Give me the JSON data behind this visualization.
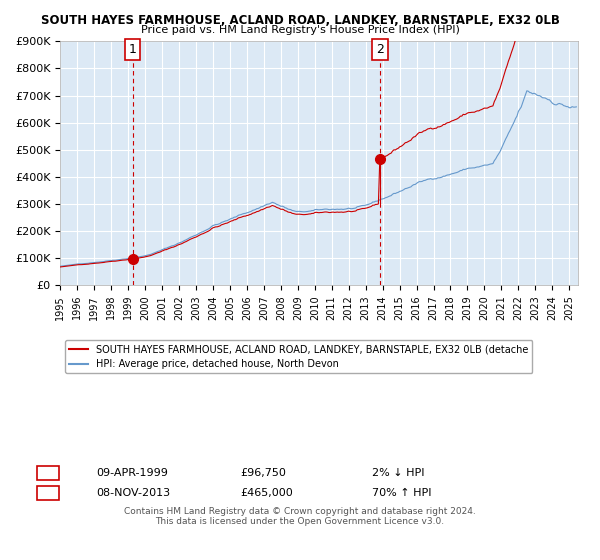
{
  "title1": "SOUTH HAYES FARMHOUSE, ACLAND ROAD, LANDKEY, BARNSTAPLE, EX32 0LB",
  "title2": "Price paid vs. HM Land Registry's House Price Index (HPI)",
  "ylabel": "",
  "background_color": "#dce9f5",
  "plot_bg": "#dce9f5",
  "legend_line1": "SOUTH HAYES FARMHOUSE, ACLAND ROAD, LANDKEY, BARNSTAPLE, EX32 0LB (detache",
  "legend_line2": "HPI: Average price, detached house, North Devon",
  "annotation1_label": "1",
  "annotation1_date": "09-APR-1999",
  "annotation1_price": "£96,750",
  "annotation1_hpi": "2% ↓ HPI",
  "annotation2_label": "2",
  "annotation2_date": "08-NOV-2013",
  "annotation2_price": "£465,000",
  "annotation2_hpi": "70% ↑ HPI",
  "footer": "Contains HM Land Registry data © Crown copyright and database right 2024.\nThis data is licensed under the Open Government Licence v3.0.",
  "red_line_color": "#cc0000",
  "blue_line_color": "#6699cc",
  "vline_color": "#cc0000",
  "marker_color": "#cc0000",
  "purchase1_year": 1999.27,
  "purchase1_price": 96750,
  "purchase2_year": 2013.85,
  "purchase2_price": 465000,
  "ylim": [
    0,
    900000
  ],
  "xlim_start": 1995.0,
  "xlim_end": 2025.5
}
